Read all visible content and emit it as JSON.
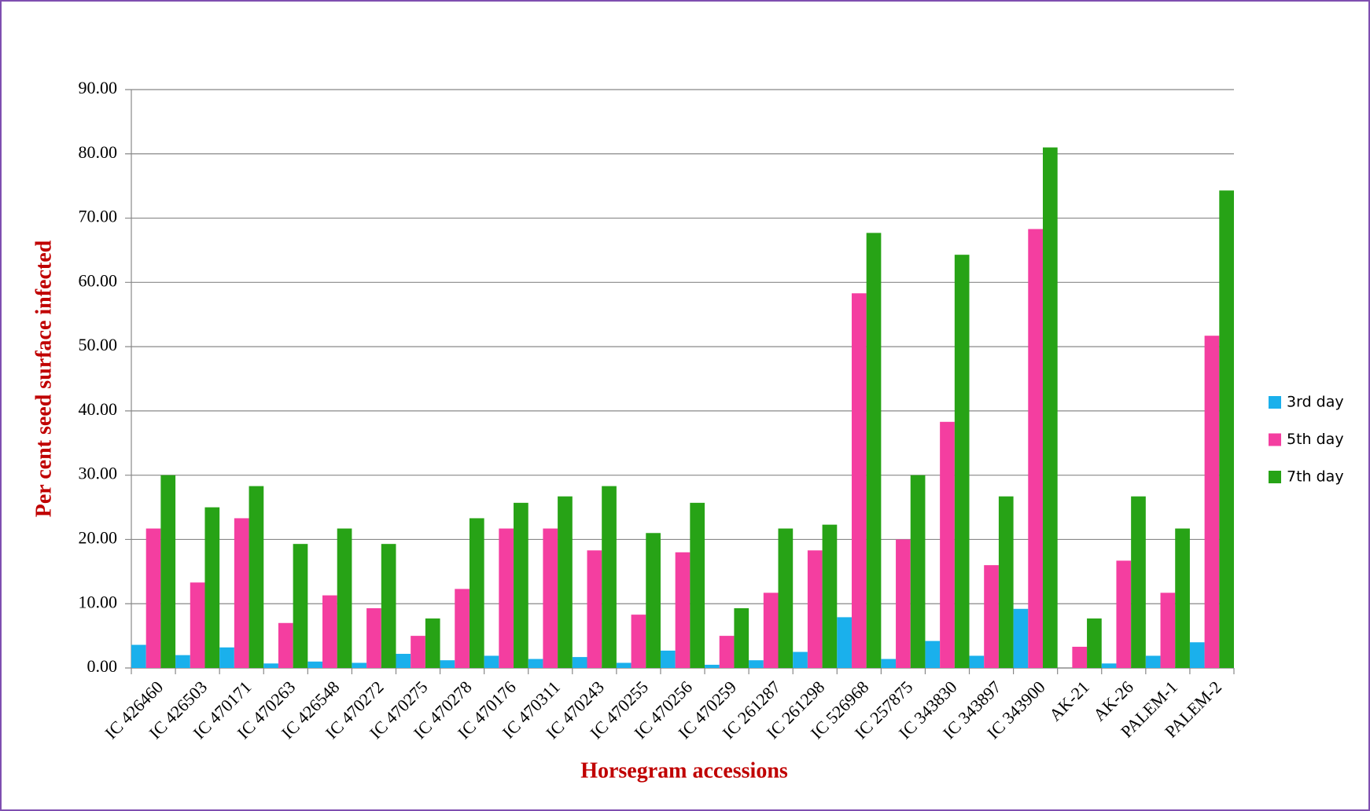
{
  "chart_data": {
    "type": "bar",
    "x_label": "Horsegram accessions",
    "y_label": "Per cent seed surface infected",
    "categories": [
      "IC 426460",
      "IC 426503",
      "IC 470171",
      "IC 470263",
      "IC 426548",
      "IC 470272",
      "IC 470275",
      "IC 470278",
      "IC 470176",
      "IC 470311",
      "IC 470243",
      "IC 470255",
      "IC 470256",
      "IC 470259",
      "IC 261287",
      "IC 261298",
      "IC 526968",
      "IC 257875",
      "IC 343830",
      "IC 343897",
      "IC 343900",
      "AK-21",
      "AK-26",
      "PALEM-1",
      "PALEM-2"
    ],
    "series": [
      {
        "name": "3rd day",
        "color": "#1ab0ec",
        "values": [
          3.6,
          2.0,
          3.2,
          0.7,
          1.0,
          0.8,
          2.2,
          1.2,
          1.9,
          1.4,
          1.7,
          0.8,
          2.7,
          0.5,
          1.2,
          2.5,
          7.9,
          1.4,
          4.2,
          1.9,
          9.2,
          0,
          0.7,
          1.9,
          4.0
        ]
      },
      {
        "name": "5th day",
        "color": "#f43ea0",
        "values": [
          21.7,
          13.3,
          23.3,
          7.0,
          11.3,
          9.3,
          5.0,
          12.3,
          21.7,
          21.7,
          18.3,
          8.3,
          18.0,
          5.0,
          11.7,
          18.3,
          58.3,
          20.0,
          38.3,
          16.0,
          68.3,
          3.3,
          16.7,
          11.7,
          51.7
        ]
      },
      {
        "name": "7th day",
        "color": "#27a316",
        "values": [
          30.0,
          25.0,
          28.3,
          19.3,
          21.7,
          19.3,
          7.7,
          23.3,
          25.7,
          26.7,
          28.3,
          21.0,
          25.7,
          9.3,
          21.7,
          22.3,
          67.7,
          30.0,
          64.3,
          26.7,
          81.0,
          7.7,
          26.7,
          21.7,
          74.3
        ]
      }
    ],
    "ylim": [
      0,
      90
    ],
    "yticks": [
      {
        "value": 0,
        "label": "0.00"
      },
      {
        "value": 10,
        "label": "10.00"
      },
      {
        "value": 20,
        "label": "20.00"
      },
      {
        "value": 30,
        "label": "30.00"
      },
      {
        "value": 40,
        "label": "40.00"
      },
      {
        "value": 50,
        "label": "50.00"
      },
      {
        "value": 60,
        "label": "60.00"
      },
      {
        "value": 70,
        "label": "70.00"
      },
      {
        "value": 80,
        "label": "80.00"
      },
      {
        "value": 90,
        "label": "90.00"
      }
    ],
    "grid": true,
    "legend": "right"
  }
}
